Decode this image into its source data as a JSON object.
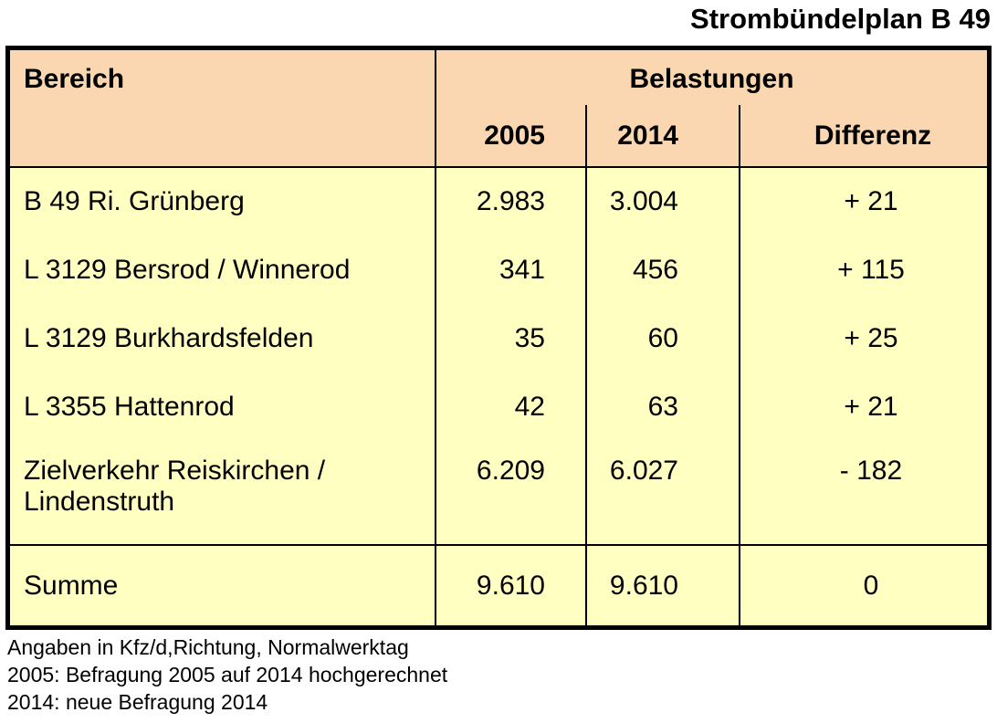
{
  "title": "Strombündelplan B 49",
  "table": {
    "header": {
      "bereich": "Bereich",
      "belastungen": "Belastungen",
      "col_2005": "2005",
      "col_2014": "2014",
      "differenz": "Differenz"
    },
    "rows": [
      {
        "bereich": "B 49 Ri. Grünberg",
        "v2005": "2.983",
        "v2014": "3.004",
        "diff": "+ 21"
      },
      {
        "bereich": "L 3129 Bersrod / Winnerod",
        "v2005": "341",
        "v2014": "456",
        "diff": "+ 115"
      },
      {
        "bereich": "L 3129 Burkhardsfelden",
        "v2005": "35",
        "v2014": "60",
        "diff": "+ 25"
      },
      {
        "bereich": "L 3355 Hattenrod",
        "v2005": "42",
        "v2014": "63",
        "diff": "+ 21"
      },
      {
        "bereich": "Zielverkehr Reiskirchen / Lindenstruth",
        "v2005": "6.209",
        "v2014": "6.027",
        "diff": "- 182"
      }
    ],
    "summe": {
      "label": "Summe",
      "v2005": "9.610",
      "v2014": "9.610",
      "diff": "0"
    }
  },
  "notes": [
    "Angaben in Kfz/d,Richtung, Normalwerktag",
    "2005: Befragung 2005 auf 2014 hochgerechnet",
    "2014: neue Befragung 2014"
  ],
  "colors": {
    "header_bg": "#FAD7B0",
    "body_bg": "#FFFFC2",
    "border": "#000000",
    "text": "#000000",
    "page_bg": "#FFFFFF"
  },
  "chart_data": {
    "type": "table",
    "title": "Strombündelplan B 49",
    "column_group": "Belastungen",
    "columns": [
      "Bereich",
      "2005",
      "2014",
      "Differenz"
    ],
    "rows": [
      [
        "B 49 Ri. Grünberg",
        2983,
        3004,
        21
      ],
      [
        "L 3129 Bersrod / Winnerod",
        341,
        456,
        115
      ],
      [
        "L 3129 Burkhardsfelden",
        35,
        60,
        25
      ],
      [
        "L 3355 Hattenrod",
        42,
        63,
        21
      ],
      [
        "Zielverkehr Reiskirchen / Lindenstruth",
        6209,
        6027,
        -182
      ],
      [
        "Summe",
        9610,
        9610,
        0
      ]
    ],
    "units": "Kfz/d, Richtung, Normalwerktag"
  }
}
